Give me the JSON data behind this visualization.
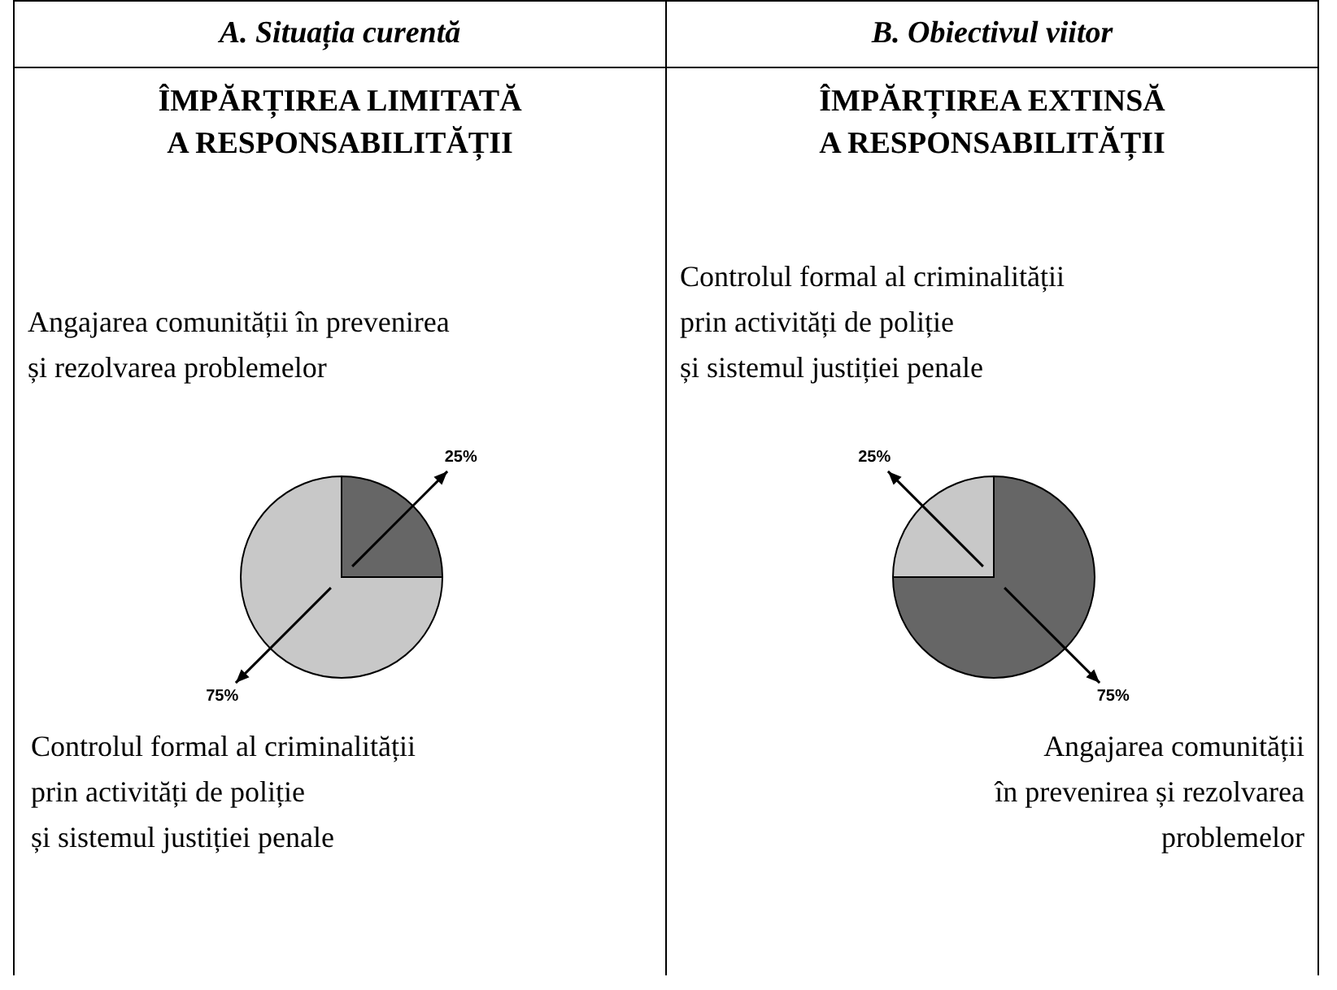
{
  "chart_data": [
    {
      "type": "pie",
      "title": "A. Situația curentă",
      "subtitle": "ÎMPĂRȚIREA LIMITATĂ A RESPONSABILITĂȚII",
      "categories": [
        "Angajarea comunității în prevenirea\nși rezolvarea problemelor",
        "Controlul formal al criminalității\nprin activități de poliție\nși sistemul justiției penale"
      ],
      "values": [
        25,
        75
      ],
      "colors": [
        "#666666",
        "#c8c8c8"
      ],
      "value_labels": [
        "25%",
        "75%"
      ]
    },
    {
      "type": "pie",
      "title": "B. Obiectivul viitor",
      "subtitle": "ÎMPĂRȚIREA EXTINSĂ A RESPONSABILITĂȚII",
      "categories": [
        "Angajarea comunității\nîn prevenirea și rezolvarea\nproblemelor",
        "Controlul formal al criminalității\nprin activități de poliție\nși sistemul justiției penale"
      ],
      "values": [
        75,
        25
      ],
      "colors": [
        "#666666",
        "#c8c8c8"
      ],
      "value_labels": [
        "75%",
        "25%"
      ]
    }
  ]
}
